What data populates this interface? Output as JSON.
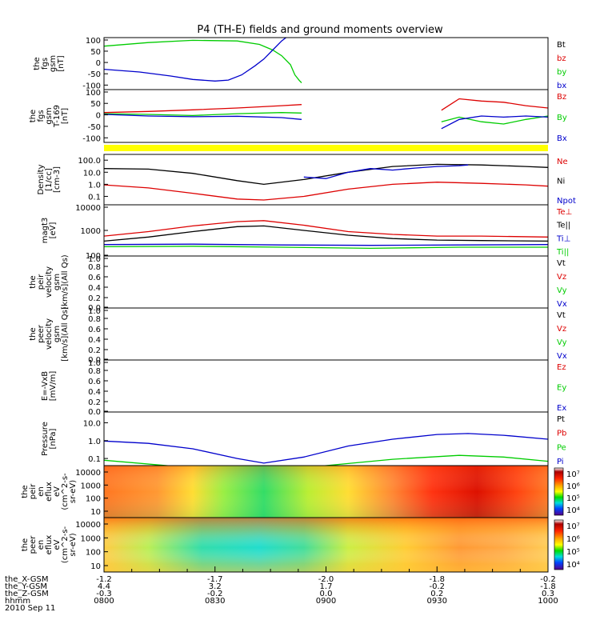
{
  "title": "P4 (TH-E) fields and ground moments overview",
  "colors": {
    "black": "#000000",
    "red": "#dd0000",
    "green": "#00cc00",
    "blue": "#0000cc",
    "yellow": "#ffff00"
  },
  "chart_data": [
    {
      "id": "p1",
      "type": "line",
      "ylabel": [
        "the",
        "fgs",
        "gsm",
        "[nT]"
      ],
      "yticks": [
        "100",
        "50",
        "0",
        "-50",
        "-100"
      ],
      "ylim": [
        -120,
        110
      ],
      "legend": [
        {
          "label": "Bt",
          "color": "black"
        },
        {
          "label": "bz",
          "color": "red"
        },
        {
          "label": "by",
          "color": "green"
        },
        {
          "label": "bx",
          "color": "blue"
        }
      ],
      "series": [
        {
          "name": "by",
          "color": "green",
          "points": [
            [
              0,
              72
            ],
            [
              0.1,
              88
            ],
            [
              0.2,
              98
            ],
            [
              0.3,
              95
            ],
            [
              0.35,
              80
            ],
            [
              0.38,
              55
            ],
            [
              0.4,
              30
            ],
            [
              0.42,
              -10
            ],
            [
              0.43,
              -55
            ],
            [
              0.44,
              -80
            ],
            [
              0.445,
              -90
            ]
          ]
        },
        {
          "name": "bx",
          "color": "blue",
          "points": [
            [
              0,
              -30
            ],
            [
              0.08,
              -42
            ],
            [
              0.15,
              -60
            ],
            [
              0.2,
              -75
            ],
            [
              0.25,
              -82
            ],
            [
              0.28,
              -78
            ],
            [
              0.31,
              -55
            ],
            [
              0.34,
              -15
            ],
            [
              0.36,
              15
            ],
            [
              0.38,
              55
            ],
            [
              0.4,
              95
            ],
            [
              0.41,
              110
            ]
          ]
        }
      ]
    },
    {
      "id": "p2",
      "type": "line",
      "ylabel": [
        "the",
        "fgs",
        "gsm",
        "T-169",
        "[nT]"
      ],
      "yticks": [
        "100",
        "50",
        "0",
        "-50",
        "-100"
      ],
      "ylim": [
        -120,
        110
      ],
      "legend": [
        {
          "label": "Bz",
          "color": "red"
        },
        {
          "label": "By",
          "color": "green"
        },
        {
          "label": "Bx",
          "color": "blue"
        }
      ],
      "series": [
        {
          "name": "Bz",
          "color": "red",
          "points": [
            [
              0,
              10
            ],
            [
              0.1,
              15
            ],
            [
              0.2,
              22
            ],
            [
              0.3,
              30
            ],
            [
              0.4,
              40
            ],
            [
              0.445,
              45
            ]
          ]
        },
        {
          "name": "By",
          "color": "green",
          "points": [
            [
              0,
              5
            ],
            [
              0.1,
              2
            ],
            [
              0.2,
              -3
            ],
            [
              0.3,
              5
            ],
            [
              0.4,
              10
            ],
            [
              0.445,
              8
            ]
          ]
        },
        {
          "name": "Bx",
          "color": "blue",
          "points": [
            [
              0,
              2
            ],
            [
              0.1,
              -5
            ],
            [
              0.2,
              -8
            ],
            [
              0.3,
              -6
            ],
            [
              0.4,
              -12
            ],
            [
              0.445,
              -20
            ]
          ]
        },
        {
          "name": "Bz",
          "color": "red",
          "points": [
            [
              0.76,
              20
            ],
            [
              0.8,
              70
            ],
            [
              0.85,
              60
            ],
            [
              0.9,
              55
            ],
            [
              0.95,
              40
            ],
            [
              1,
              30
            ]
          ]
        },
        {
          "name": "By",
          "color": "green",
          "points": [
            [
              0.76,
              -30
            ],
            [
              0.8,
              -10
            ],
            [
              0.85,
              -30
            ],
            [
              0.9,
              -40
            ],
            [
              0.95,
              -20
            ],
            [
              1,
              -5
            ]
          ]
        },
        {
          "name": "Bx",
          "color": "blue",
          "points": [
            [
              0.76,
              -60
            ],
            [
              0.8,
              -20
            ],
            [
              0.85,
              -5
            ],
            [
              0.9,
              -10
            ],
            [
              0.95,
              -5
            ],
            [
              1,
              -10
            ]
          ]
        }
      ]
    },
    {
      "id": "p3",
      "type": "line",
      "log": true,
      "ylabel": [
        "Density",
        "[1/cc]",
        "[cm-3]"
      ],
      "yticks": [
        "100.0",
        "10.0",
        "1.0",
        "0.1"
      ],
      "ylim": [
        0.02,
        300
      ],
      "legend": [
        {
          "label": "Ne",
          "color": "red"
        },
        {
          "label": "Ni",
          "color": "black"
        },
        {
          "label": "Npot",
          "color": "blue"
        }
      ],
      "series": [
        {
          "name": "Ni",
          "color": "black",
          "points": [
            [
              0,
              20
            ],
            [
              0.1,
              18
            ],
            [
              0.2,
              8
            ],
            [
              0.3,
              2
            ],
            [
              0.36,
              1.0
            ],
            [
              0.45,
              2.5
            ],
            [
              0.55,
              10
            ],
            [
              0.65,
              30
            ],
            [
              0.75,
              45
            ],
            [
              0.85,
              40
            ],
            [
              0.95,
              30
            ],
            [
              1,
              25
            ]
          ]
        },
        {
          "name": "Ne",
          "color": "red",
          "points": [
            [
              0,
              0.9
            ],
            [
              0.1,
              0.5
            ],
            [
              0.2,
              0.18
            ],
            [
              0.3,
              0.06
            ],
            [
              0.36,
              0.05
            ],
            [
              0.45,
              0.1
            ],
            [
              0.55,
              0.4
            ],
            [
              0.65,
              1.0
            ],
            [
              0.75,
              1.5
            ],
            [
              0.85,
              1.2
            ],
            [
              0.95,
              0.9
            ],
            [
              1,
              0.7
            ]
          ]
        },
        {
          "name": "Npot",
          "color": "blue",
          "points": [
            [
              0.45,
              4
            ],
            [
              0.5,
              3
            ],
            [
              0.55,
              10
            ],
            [
              0.6,
              20
            ],
            [
              0.65,
              15
            ],
            [
              0.7,
              22
            ],
            [
              0.75,
              30
            ],
            [
              0.8,
              35
            ],
            [
              0.82,
              40
            ]
          ]
        }
      ]
    },
    {
      "id": "p4",
      "type": "line",
      "log": true,
      "ylabel": [
        "magt3",
        "[eV]"
      ],
      "yticks": [
        "10000",
        "1000",
        "100"
      ],
      "ylim": [
        100,
        10000
      ],
      "legend": [
        {
          "label": "Te⊥",
          "color": "red"
        },
        {
          "label": "Te||",
          "color": "black"
        },
        {
          "label": "Ti⊥",
          "color": "blue"
        },
        {
          "label": "Ti||",
          "color": "green"
        }
      ],
      "series": [
        {
          "name": "Te⊥",
          "color": "red",
          "points": [
            [
              0,
              600
            ],
            [
              0.1,
              900
            ],
            [
              0.2,
              1500
            ],
            [
              0.3,
              2200
            ],
            [
              0.36,
              2400
            ],
            [
              0.45,
              1600
            ],
            [
              0.55,
              900
            ],
            [
              0.65,
              700
            ],
            [
              0.75,
              600
            ],
            [
              0.85,
              600
            ],
            [
              1,
              550
            ]
          ]
        },
        {
          "name": "Te||",
          "color": "black",
          "points": [
            [
              0,
              380
            ],
            [
              0.1,
              550
            ],
            [
              0.2,
              900
            ],
            [
              0.3,
              1400
            ],
            [
              0.36,
              1500
            ],
            [
              0.45,
              1000
            ],
            [
              0.55,
              650
            ],
            [
              0.65,
              480
            ],
            [
              0.75,
              420
            ],
            [
              0.85,
              400
            ],
            [
              1,
              380
            ]
          ]
        },
        {
          "name": "Ti⊥",
          "color": "blue",
          "points": [
            [
              0,
              280
            ],
            [
              0.2,
              290
            ],
            [
              0.4,
              270
            ],
            [
              0.6,
              260
            ],
            [
              0.8,
              270
            ],
            [
              1,
              280
            ]
          ]
        },
        {
          "name": "Ti||",
          "color": "green",
          "points": [
            [
              0,
              230
            ],
            [
              0.2,
              240
            ],
            [
              0.4,
              220
            ],
            [
              0.6,
              200
            ],
            [
              0.8,
              220
            ],
            [
              1,
              220
            ]
          ]
        }
      ]
    },
    {
      "id": "p5",
      "type": "line",
      "ylabel": [
        "the",
        "peir",
        "velocity",
        "gsm",
        "[km/s](All Qs)"
      ],
      "yticks": [
        "1.0",
        "0.8",
        "0.6",
        "0.4",
        "0.2",
        "0.0"
      ],
      "ylim": [
        0,
        1
      ],
      "legend": [
        {
          "label": "Vt",
          "color": "black"
        },
        {
          "label": "Vz",
          "color": "red"
        },
        {
          "label": "Vy",
          "color": "green"
        },
        {
          "label": "Vx",
          "color": "blue"
        }
      ],
      "series": []
    },
    {
      "id": "p6",
      "type": "line",
      "ylabel": [
        "the",
        "peer",
        "velocity",
        "gsm",
        "[km/s](All Qs)"
      ],
      "yticks": [
        "1.0",
        "0.8",
        "0.6",
        "0.4",
        "0.2",
        "0.0"
      ],
      "ylim": [
        0,
        1
      ],
      "legend": [
        {
          "label": "Vt",
          "color": "black"
        },
        {
          "label": "Vz",
          "color": "red"
        },
        {
          "label": "Vy",
          "color": "green"
        },
        {
          "label": "Vx",
          "color": "blue"
        }
      ],
      "series": []
    },
    {
      "id": "p7",
      "type": "line",
      "ylabel": [
        "E=-VxB",
        "[mV/m]"
      ],
      "yticks": [
        "1.0",
        "0.8",
        "0.6",
        "0.4",
        "0.2",
        "0.0"
      ],
      "ylim": [
        0,
        1
      ],
      "legend": [
        {
          "label": "Ez",
          "color": "red"
        },
        {
          "label": "Ey",
          "color": "green"
        },
        {
          "label": "Ex",
          "color": "blue"
        }
      ],
      "series": []
    },
    {
      "id": "p8",
      "type": "line",
      "log": true,
      "ylabel": [
        "Pressure",
        "[nPa]"
      ],
      "yticks": [
        "10.0",
        "1.0",
        "0.1"
      ],
      "ylim": [
        0.04,
        40
      ],
      "legend": [
        {
          "label": "Pt",
          "color": "black"
        },
        {
          "label": "Pb",
          "color": "red"
        },
        {
          "label": "Pe",
          "color": "green"
        },
        {
          "label": "Pi",
          "color": "blue"
        }
      ],
      "series": [
        {
          "name": "Pi",
          "color": "blue",
          "points": [
            [
              0,
              0.95
            ],
            [
              0.1,
              0.7
            ],
            [
              0.2,
              0.35
            ],
            [
              0.3,
              0.1
            ],
            [
              0.36,
              0.055
            ],
            [
              0.45,
              0.12
            ],
            [
              0.55,
              0.5
            ],
            [
              0.65,
              1.2
            ],
            [
              0.75,
              2.2
            ],
            [
              0.82,
              2.5
            ],
            [
              0.9,
              2.0
            ],
            [
              1,
              1.2
            ]
          ]
        },
        {
          "name": "Pe",
          "color": "green",
          "points": [
            [
              0,
              0.08
            ],
            [
              0.2,
              0.03
            ],
            [
              0.36,
              0.02
            ],
            [
              0.5,
              0.04
            ],
            [
              0.65,
              0.09
            ],
            [
              0.8,
              0.15
            ],
            [
              0.9,
              0.12
            ],
            [
              1,
              0.07
            ]
          ]
        }
      ]
    },
    {
      "id": "p9",
      "type": "heatmap",
      "ylabel": [
        "the",
        "peir",
        "en",
        "eflux",
        "eV",
        "(cm^2-s-",
        "sr-eV)"
      ],
      "yticks": [
        "10000",
        "1000",
        "100",
        "10"
      ],
      "colorbar_ticks": [
        "10^7",
        "10^6",
        "10^5",
        "10^4"
      ]
    },
    {
      "id": "p10",
      "type": "heatmap",
      "ylabel": [
        "the",
        "peer",
        "en",
        "eflux",
        "eV",
        "(cm^2-s-",
        "sr-eV)"
      ],
      "yticks": [
        "10000",
        "1000",
        "100",
        "10"
      ],
      "colorbar_ticks": [
        "10^7",
        "10^6",
        "10^5",
        "10^4"
      ]
    }
  ],
  "xaxis": {
    "rows": [
      {
        "label": "the_X-GSM",
        "values": [
          "-1.2",
          "-1.7",
          "-2.0",
          "-1.8",
          "-0.2"
        ]
      },
      {
        "label": "the_Y-GSM",
        "values": [
          "4.4",
          "3.2",
          "1.7",
          "-0.2",
          "-1.8"
        ]
      },
      {
        "label": "the_Z-GSM",
        "values": [
          "-0.3",
          "-0.2",
          "0.0",
          "0.2",
          "0.3"
        ]
      },
      {
        "label": "hhmm",
        "values": [
          "0800",
          "0830",
          "0900",
          "0930",
          "1000"
        ]
      }
    ],
    "date": "2010 Sep 11"
  }
}
